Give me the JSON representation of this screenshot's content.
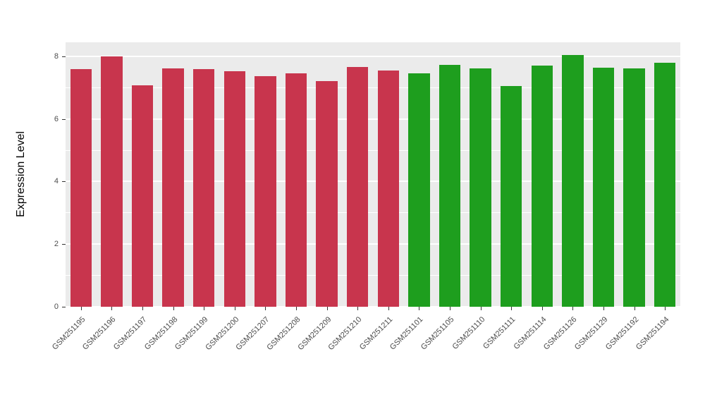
{
  "chart_data": {
    "type": "bar",
    "title": "",
    "xlabel": "",
    "ylabel": "Expression Level",
    "ylim": [
      0,
      8.45
    ],
    "yticks": [
      0,
      2,
      4,
      6,
      8
    ],
    "yticks_minor": [
      1,
      3,
      5,
      7
    ],
    "grid": "on",
    "legend_position": "none",
    "plot_background": "#EBEBEB",
    "categories": [
      "GSM251195",
      "GSM251196",
      "GSM251197",
      "GSM251198",
      "GSM251199",
      "GSM251200",
      "GSM251207",
      "GSM251208",
      "GSM251209",
      "GSM251210",
      "GSM251211",
      "GSM251101",
      "GSM251105",
      "GSM251110",
      "GSM251111",
      "GSM251114",
      "GSM251126",
      "GSM251129",
      "GSM251192",
      "GSM251194"
    ],
    "values": [
      7.6,
      8.0,
      7.08,
      7.62,
      7.6,
      7.52,
      7.36,
      7.45,
      7.2,
      7.67,
      7.55,
      7.47,
      7.72,
      7.62,
      7.05,
      7.7,
      8.05,
      7.64,
      7.62,
      7.79
    ],
    "groups": [
      "red",
      "red",
      "red",
      "red",
      "red",
      "red",
      "red",
      "red",
      "red",
      "red",
      "red",
      "green",
      "green",
      "green",
      "green",
      "green",
      "green",
      "green",
      "green",
      "green"
    ],
    "group_colors": {
      "red": "#C8354D",
      "green": "#1E9E1E"
    }
  }
}
